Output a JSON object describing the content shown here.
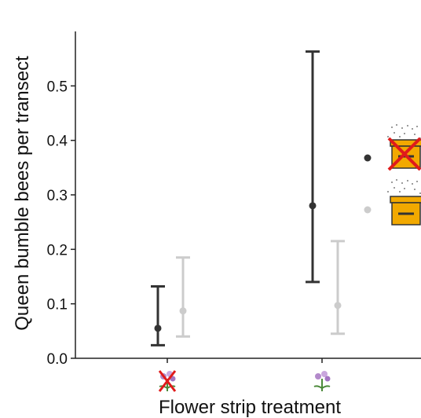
{
  "chart_data": {
    "type": "errorbar",
    "ylabel": "Queen bumble bees per transect",
    "xlabel": "Flower strip treatment",
    "ylim": [
      0,
      0.6
    ],
    "yticks": [
      0.0,
      0.1,
      0.2,
      0.3,
      0.4,
      0.5
    ],
    "ytick_labels": [
      "0.0",
      "0.1",
      "0.2",
      "0.3",
      "0.4",
      "0.5"
    ],
    "categories": [
      "no-flower-strip-icon",
      "flower-strip-icon"
    ],
    "series": [
      {
        "legend_icon": "hive-crossed-icon",
        "color": "#333333",
        "points": [
          {
            "category": 0,
            "mean": 0.055,
            "lower": 0.024,
            "upper": 0.132
          },
          {
            "category": 1,
            "mean": 0.28,
            "lower": 0.14,
            "upper": 0.563
          }
        ]
      },
      {
        "legend_icon": "hive-icon",
        "color": "#cccccc",
        "points": [
          {
            "category": 0,
            "mean": 0.087,
            "lower": 0.04,
            "upper": 0.185
          },
          {
            "category": 1,
            "mean": 0.097,
            "lower": 0.045,
            "upper": 0.215
          }
        ]
      }
    ],
    "grid": false,
    "legend_position": "right"
  }
}
